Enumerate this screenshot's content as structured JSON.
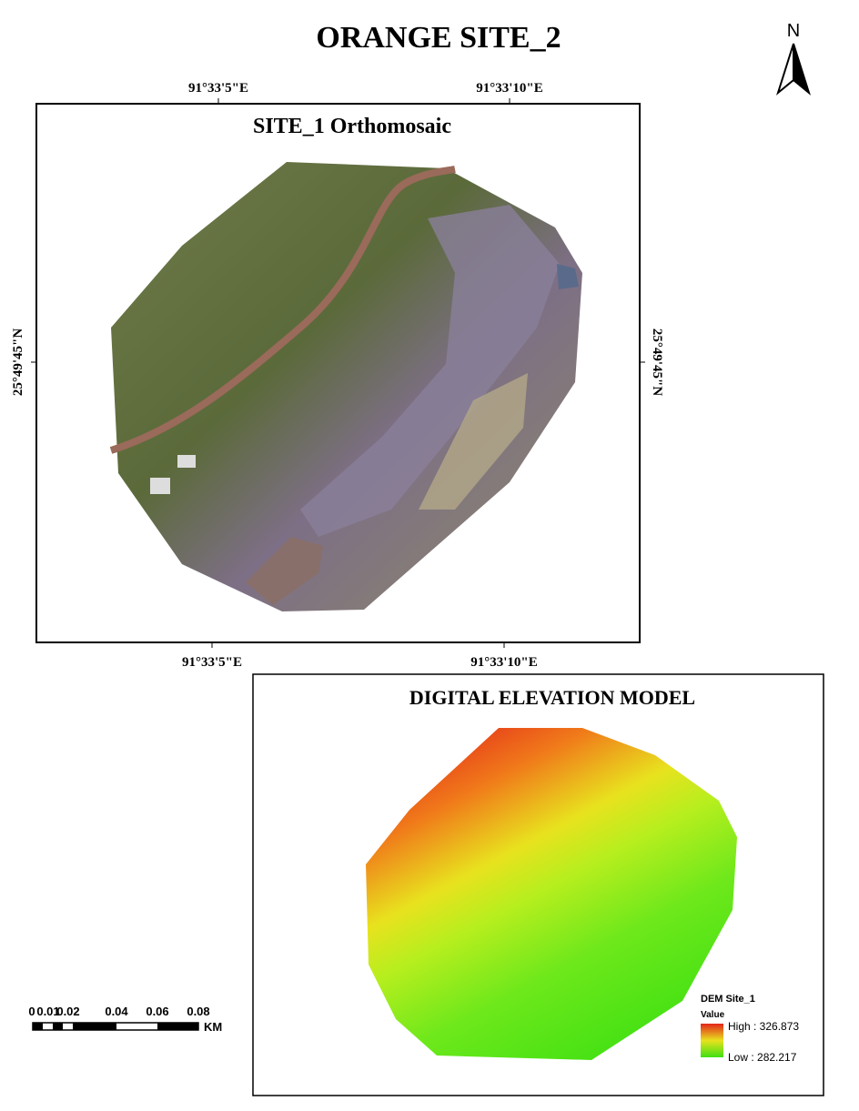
{
  "header": {
    "title": "ORANGE SITE_2"
  },
  "north_arrow": {
    "label": "N"
  },
  "orthomosaic": {
    "title": "SITE_1 Orthomosaic",
    "top_labels": [
      "91°33'5\"E",
      "91°33'10\"E"
    ],
    "bottom_labels": [
      "91°33'5\"E",
      "91°33'10\"E"
    ],
    "left_label": "25°49'45\"N",
    "right_label": "25°49'45\"N"
  },
  "dem": {
    "title": "DIGITAL ELEVATION MODEL",
    "legend": {
      "title": "DEM Site_1",
      "subtitle": "Value",
      "high": "High : 326.873",
      "low": "Low : 282.217"
    }
  },
  "scale_bar": {
    "labels": [
      "0",
      "0.01",
      "0.02",
      "0.04",
      "0.06",
      "0.08"
    ],
    "unit": "KM"
  }
}
